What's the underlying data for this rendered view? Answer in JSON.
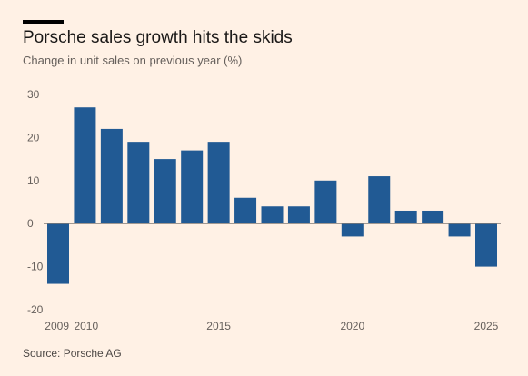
{
  "header": {
    "title": "Porsche sales growth hits the skids",
    "subtitle": "Change in unit sales on previous year (%)"
  },
  "footer": {
    "source": "Source: Porsche AG"
  },
  "colors": {
    "bar": "#215a94",
    "background": "#fff1e5",
    "zero_line": "#807a76"
  },
  "chart_data": {
    "type": "bar",
    "title": "Porsche sales growth hits the skids",
    "subtitle": "Change in unit sales on previous year (%)",
    "xlabel": "",
    "ylabel": "",
    "x": [
      2009,
      2010,
      2011,
      2012,
      2013,
      2014,
      2015,
      2016,
      2017,
      2018,
      2019,
      2020,
      2021,
      2022,
      2023,
      2024,
      2025
    ],
    "values": [
      -14,
      27,
      22,
      19,
      15,
      17,
      19,
      6,
      4,
      4,
      10,
      -3,
      11,
      3,
      3,
      -3,
      -10
    ],
    "ylim": [
      -20,
      30
    ],
    "yticks": [
      30,
      20,
      10,
      0,
      -10,
      -20
    ],
    "xticks": [
      {
        "value": 2009,
        "label": "2009"
      },
      {
        "value": 2010,
        "label": "2010"
      },
      {
        "value": 2015,
        "label": "2015"
      },
      {
        "value": 2020,
        "label": "2020"
      },
      {
        "value": 2025,
        "label": "2025"
      }
    ],
    "grid": false,
    "legend": "none"
  }
}
